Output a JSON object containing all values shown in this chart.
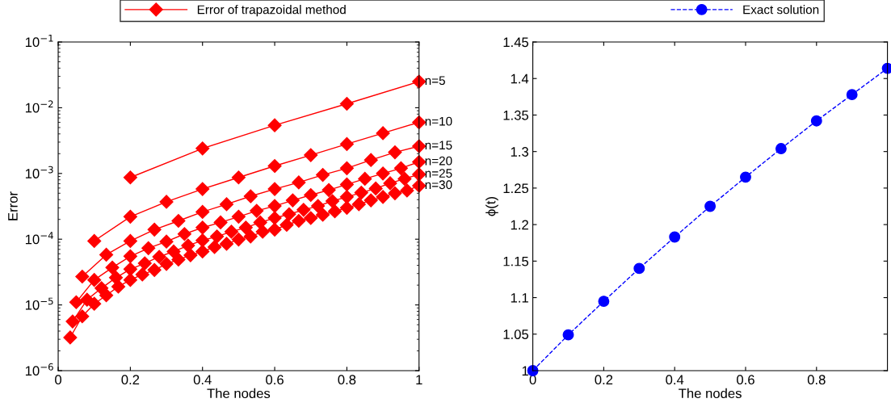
{
  "chart_data": [
    {
      "type": "line",
      "xlabel": "The nodes",
      "ylabel": "Error",
      "legend_title": "Error of trapazoidal method",
      "log": "y",
      "marker": "diamond",
      "line_style": "solid",
      "grid": false,
      "legend": "top",
      "xlim": [
        0,
        1
      ],
      "xticks": [
        0,
        0.2,
        0.4,
        0.6,
        0.8,
        1
      ],
      "ylim": [
        1e-06,
        0.1
      ],
      "yticks": [
        {
          "value": 1e-06,
          "label": "10$^{−6}$"
        },
        {
          "value": 1e-05,
          "label": "10$^{−5}$"
        },
        {
          "value": 0.0001,
          "label": "10$^{−4}$"
        },
        {
          "value": 0.001,
          "label": "10$^{−3}$"
        },
        {
          "value": 0.01,
          "label": "10$^{−2}$"
        },
        {
          "value": 0.1,
          "label": "10$^{−1}$"
        }
      ],
      "series": [
        {
          "name": "n=5",
          "color": "#ff0000",
          "x": [
            0.2,
            0.4,
            0.6,
            0.8,
            1.0
          ],
          "values": [
            0.00087,
            0.0024,
            0.0054,
            0.0115,
            0.025
          ]
        },
        {
          "name": "n=10",
          "color": "#ff0000",
          "x": [
            0.1,
            0.2,
            0.3,
            0.4,
            0.5,
            0.6,
            0.7,
            0.8,
            0.9,
            1.0
          ],
          "values": [
            9.4e-05,
            0.00022,
            0.00037,
            0.00058,
            0.00087,
            0.0013,
            0.0019,
            0.0028,
            0.0041,
            0.006
          ]
        },
        {
          "name": "n=15",
          "color": "#ff0000",
          "x": [
            0.0667,
            0.1333,
            0.2,
            0.2667,
            0.3333,
            0.4,
            0.4667,
            0.5333,
            0.6,
            0.6667,
            0.7333,
            0.8,
            0.8667,
            0.9333,
            1.0
          ],
          "values": [
            2.7e-05,
            5.8e-05,
            9.4e-05,
            0.00014,
            0.00019,
            0.00026,
            0.00034,
            0.00045,
            0.00058,
            0.00073,
            0.00095,
            0.0012,
            0.0016,
            0.0021,
            0.0026
          ]
        },
        {
          "name": "n=20",
          "color": "#ff0000",
          "x": [
            0.05,
            0.1,
            0.15,
            0.2,
            0.25,
            0.3,
            0.35,
            0.4,
            0.45,
            0.5,
            0.55,
            0.6,
            0.65,
            0.7,
            0.75,
            0.8,
            0.85,
            0.9,
            0.95,
            1.0
          ],
          "values": [
            1.1e-05,
            2.4e-05,
            3.7e-05,
            5.5e-05,
            7.3e-05,
            9.2e-05,
            0.00012,
            0.00015,
            0.00018,
            0.00022,
            0.00027,
            0.00032,
            0.00039,
            0.00047,
            0.00056,
            0.00068,
            0.00083,
            0.001,
            0.0012,
            0.0015
          ]
        },
        {
          "name": "n=25",
          "color": "#ff0000",
          "x": [
            0.04,
            0.08,
            0.12,
            0.16,
            0.2,
            0.24,
            0.28,
            0.32,
            0.36,
            0.4,
            0.44,
            0.48,
            0.52,
            0.56,
            0.6,
            0.64,
            0.68,
            0.72,
            0.76,
            0.8,
            0.84,
            0.88,
            0.92,
            0.96,
            1.0
          ],
          "values": [
            5.6e-06,
            1.2e-05,
            1.8e-05,
            2.6e-05,
            3.5e-05,
            4.3e-05,
            5.4e-05,
            6.5e-05,
            8e-05,
            9.6e-05,
            0.00011,
            0.00013,
            0.00015,
            0.00018,
            0.00021,
            0.00024,
            0.00028,
            0.00032,
            0.00038,
            0.00044,
            0.00051,
            0.00059,
            0.00071,
            0.00083,
            0.00097
          ]
        },
        {
          "name": "n=30",
          "color": "#ff0000",
          "x": [
            0.0333,
            0.0667,
            0.1,
            0.1333,
            0.1667,
            0.2,
            0.2333,
            0.2667,
            0.3,
            0.3333,
            0.3667,
            0.4,
            0.4333,
            0.4667,
            0.5,
            0.5333,
            0.5667,
            0.6,
            0.6333,
            0.6667,
            0.7,
            0.7333,
            0.7667,
            0.8,
            0.8333,
            0.8667,
            0.9,
            0.9333,
            0.9667,
            1.0
          ],
          "values": [
            3.2e-06,
            6.7e-06,
            1.04e-05,
            1.4e-05,
            1.9e-05,
            2.4e-05,
            2.9e-05,
            3.4e-05,
            4.2e-05,
            4.9e-05,
            5.7e-05,
            6.5e-05,
            7.6e-05,
            8.5e-05,
            9.9e-05,
            0.00011,
            0.00013,
            0.00014,
            0.000165,
            0.00019,
            0.00021,
            0.000235,
            0.000265,
            0.0003,
            0.00034,
            0.00039,
            0.00044,
            0.0005,
            0.00055,
            0.00065
          ]
        }
      ]
    },
    {
      "type": "line",
      "xlabel": "The nodes",
      "ylabel": "ϕ(t)",
      "marker": "circle",
      "line_style": "dashed",
      "grid": false,
      "legend": "top",
      "xlim": [
        0,
        1
      ],
      "xticks": [
        0,
        0.2,
        0.4,
        0.6,
        0.8
      ],
      "ylim": [
        1,
        1.45
      ],
      "yticks": [
        1,
        1.05,
        1.1,
        1.15,
        1.2,
        1.25,
        1.3,
        1.35,
        1.4,
        1.45
      ],
      "series": [
        {
          "name": "Exact solution",
          "color": "#0000ff",
          "x": [
            0,
            0.1,
            0.2,
            0.3,
            0.4,
            0.5,
            0.6,
            0.7,
            0.8,
            0.9,
            1.0
          ],
          "values": [
            1.0,
            1.049,
            1.095,
            1.14,
            1.183,
            1.225,
            1.265,
            1.304,
            1.342,
            1.378,
            1.414
          ]
        }
      ]
    }
  ]
}
